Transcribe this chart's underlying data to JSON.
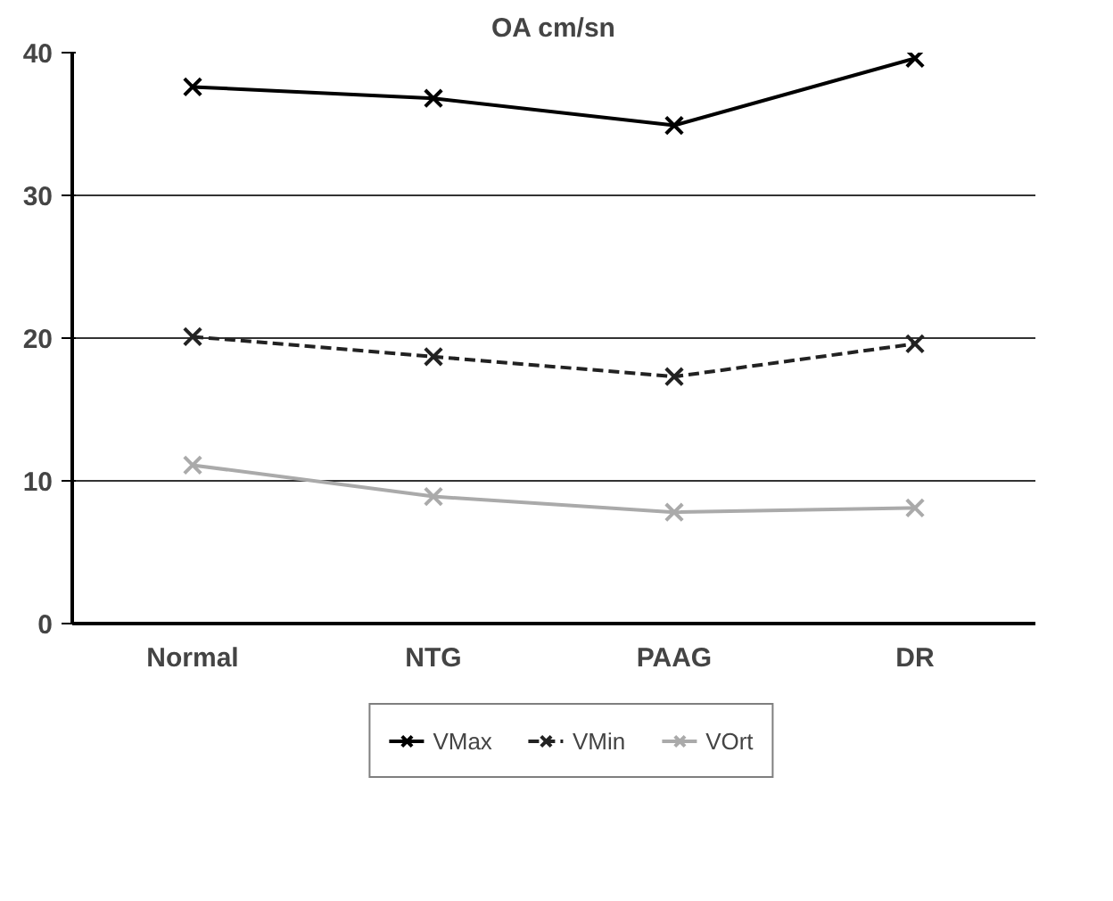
{
  "chart_data": {
    "type": "line",
    "title": "OA cm/sn",
    "categories": [
      "Normal",
      "NTG",
      "PAAG",
      "DR"
    ],
    "series": [
      {
        "name": "VMax",
        "color": "#000000",
        "line_style": "solid",
        "values": [
          37.6,
          36.8,
          34.9,
          39.6
        ]
      },
      {
        "name": "VMin",
        "color": "#222222",
        "line_style": "dashed",
        "values": [
          20.1,
          18.7,
          17.3,
          19.6
        ]
      },
      {
        "name": "VOrt",
        "color": "#aaaaaa",
        "line_style": "solid",
        "values": [
          11.1,
          8.9,
          7.8,
          8.1
        ]
      }
    ],
    "ylim": [
      0,
      40
    ],
    "yticks": [
      0,
      10,
      20,
      30,
      40
    ],
    "grid": "y",
    "legend": "bottom",
    "marker": "cross"
  }
}
